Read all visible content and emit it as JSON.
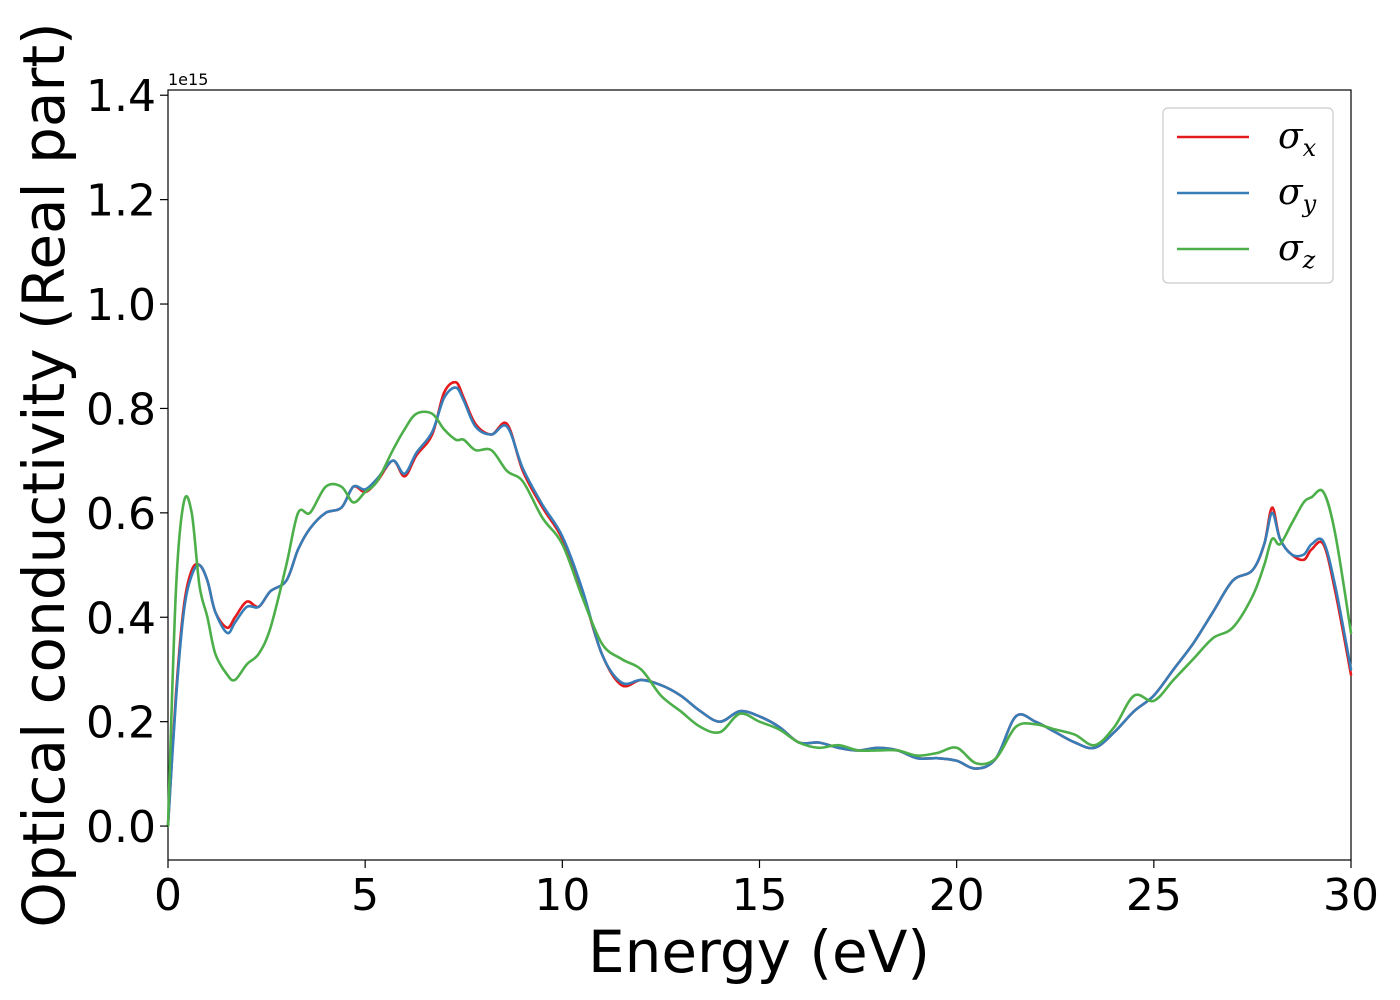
{
  "chart_data": {
    "type": "line",
    "xlabel": "Energy (eV)",
    "ylabel": "Optical conductivity (Real part)",
    "y_offset_label": "1e15",
    "xlim": [
      0,
      30
    ],
    "ylim": [
      -0.065,
      1.41
    ],
    "xticks": [
      0,
      5,
      10,
      15,
      20,
      25,
      30
    ],
    "xtick_labels": [
      "0",
      "5",
      "10",
      "15",
      "20",
      "25",
      "30"
    ],
    "yticks": [
      0.0,
      0.2,
      0.4,
      0.6,
      0.8,
      1.0,
      1.2,
      1.4
    ],
    "ytick_labels": [
      "0.0",
      "0.2",
      "0.4",
      "0.6",
      "0.8",
      "1.0",
      "1.2",
      "1.4"
    ],
    "grid": false,
    "legend_position": "top-right",
    "series": [
      {
        "name": "σ",
        "subscript": "x",
        "color": "#e41a1c",
        "x": [
          0,
          0.2,
          0.4,
          0.6,
          0.8,
          1.0,
          1.2,
          1.5,
          1.7,
          2.0,
          2.3,
          2.6,
          3.0,
          3.3,
          3.6,
          4.0,
          4.4,
          4.7,
          5.0,
          5.3,
          5.7,
          6.0,
          6.3,
          6.7,
          7.0,
          7.3,
          7.5,
          7.8,
          8.2,
          8.6,
          9.0,
          9.5,
          10.0,
          10.5,
          11.0,
          11.5,
          12.0,
          12.5,
          13.0,
          13.5,
          14.0,
          14.5,
          15.0,
          15.5,
          16.0,
          16.5,
          17.0,
          17.5,
          18.0,
          18.5,
          19.0,
          19.5,
          20.0,
          20.5,
          21.0,
          21.5,
          22.0,
          22.5,
          23.0,
          23.5,
          24.0,
          24.5,
          25.0,
          25.5,
          26.0,
          26.5,
          27.0,
          27.5,
          27.8,
          28.0,
          28.2,
          28.5,
          28.8,
          29.0,
          29.3,
          29.6,
          30.0
        ],
        "values": [
          0.0,
          0.25,
          0.42,
          0.49,
          0.5,
          0.47,
          0.41,
          0.38,
          0.4,
          0.43,
          0.42,
          0.45,
          0.47,
          0.53,
          0.57,
          0.6,
          0.61,
          0.65,
          0.64,
          0.66,
          0.7,
          0.67,
          0.71,
          0.75,
          0.83,
          0.85,
          0.82,
          0.77,
          0.75,
          0.77,
          0.68,
          0.61,
          0.55,
          0.45,
          0.33,
          0.27,
          0.28,
          0.27,
          0.25,
          0.22,
          0.2,
          0.22,
          0.21,
          0.19,
          0.16,
          0.16,
          0.15,
          0.145,
          0.15,
          0.145,
          0.13,
          0.13,
          0.125,
          0.11,
          0.13,
          0.21,
          0.2,
          0.18,
          0.16,
          0.15,
          0.18,
          0.22,
          0.25,
          0.3,
          0.35,
          0.41,
          0.47,
          0.49,
          0.54,
          0.61,
          0.55,
          0.52,
          0.51,
          0.53,
          0.54,
          0.45,
          0.29
        ]
      },
      {
        "name": "σ",
        "subscript": "y",
        "color": "#377eb8",
        "x": [
          0,
          0.2,
          0.4,
          0.6,
          0.8,
          1.0,
          1.2,
          1.5,
          1.7,
          2.0,
          2.3,
          2.6,
          3.0,
          3.3,
          3.6,
          4.0,
          4.4,
          4.7,
          5.0,
          5.3,
          5.7,
          6.0,
          6.3,
          6.7,
          7.0,
          7.3,
          7.5,
          7.8,
          8.2,
          8.6,
          9.0,
          9.5,
          10.0,
          10.5,
          11.0,
          11.5,
          12.0,
          12.5,
          13.0,
          13.5,
          14.0,
          14.5,
          15.0,
          15.5,
          16.0,
          16.5,
          17.0,
          17.5,
          18.0,
          18.5,
          19.0,
          19.5,
          20.0,
          20.5,
          21.0,
          21.5,
          22.0,
          22.5,
          23.0,
          23.5,
          24.0,
          24.5,
          25.0,
          25.5,
          26.0,
          26.5,
          27.0,
          27.5,
          27.8,
          28.0,
          28.2,
          28.5,
          28.8,
          29.0,
          29.3,
          29.6,
          30.0
        ],
        "values": [
          0.0,
          0.24,
          0.41,
          0.48,
          0.5,
          0.47,
          0.41,
          0.37,
          0.39,
          0.42,
          0.42,
          0.45,
          0.47,
          0.53,
          0.57,
          0.6,
          0.61,
          0.65,
          0.645,
          0.665,
          0.7,
          0.675,
          0.715,
          0.755,
          0.82,
          0.84,
          0.815,
          0.765,
          0.75,
          0.765,
          0.685,
          0.615,
          0.555,
          0.455,
          0.33,
          0.275,
          0.28,
          0.27,
          0.25,
          0.22,
          0.2,
          0.22,
          0.21,
          0.19,
          0.16,
          0.16,
          0.15,
          0.145,
          0.15,
          0.145,
          0.13,
          0.13,
          0.125,
          0.11,
          0.13,
          0.21,
          0.2,
          0.18,
          0.16,
          0.15,
          0.18,
          0.22,
          0.25,
          0.3,
          0.35,
          0.41,
          0.47,
          0.49,
          0.54,
          0.6,
          0.55,
          0.52,
          0.52,
          0.54,
          0.545,
          0.46,
          0.3
        ]
      },
      {
        "name": "σ",
        "subscript": "z",
        "color": "#4daf4a",
        "x": [
          0,
          0.2,
          0.4,
          0.6,
          0.8,
          1.0,
          1.2,
          1.5,
          1.7,
          2.0,
          2.3,
          2.6,
          3.0,
          3.3,
          3.6,
          4.0,
          4.4,
          4.7,
          5.0,
          5.3,
          5.7,
          6.0,
          6.3,
          6.7,
          7.0,
          7.3,
          7.5,
          7.8,
          8.2,
          8.6,
          9.0,
          9.5,
          10.0,
          10.5,
          11.0,
          11.5,
          12.0,
          12.5,
          13.0,
          13.5,
          14.0,
          14.5,
          15.0,
          15.5,
          16.0,
          16.5,
          17.0,
          17.5,
          18.0,
          18.5,
          19.0,
          19.5,
          20.0,
          20.5,
          21.0,
          21.5,
          22.0,
          22.5,
          23.0,
          23.5,
          24.0,
          24.5,
          25.0,
          25.5,
          26.0,
          26.5,
          27.0,
          27.5,
          27.8,
          28.0,
          28.2,
          28.5,
          28.8,
          29.0,
          29.3,
          29.6,
          30.0
        ],
        "values": [
          0.0,
          0.45,
          0.62,
          0.6,
          0.46,
          0.4,
          0.33,
          0.29,
          0.28,
          0.31,
          0.33,
          0.38,
          0.5,
          0.6,
          0.6,
          0.65,
          0.65,
          0.62,
          0.64,
          0.66,
          0.72,
          0.76,
          0.79,
          0.79,
          0.76,
          0.74,
          0.74,
          0.72,
          0.72,
          0.68,
          0.66,
          0.59,
          0.54,
          0.44,
          0.35,
          0.32,
          0.3,
          0.25,
          0.22,
          0.19,
          0.18,
          0.215,
          0.2,
          0.185,
          0.16,
          0.15,
          0.155,
          0.145,
          0.145,
          0.145,
          0.135,
          0.14,
          0.15,
          0.12,
          0.13,
          0.19,
          0.195,
          0.185,
          0.175,
          0.155,
          0.19,
          0.25,
          0.24,
          0.28,
          0.32,
          0.36,
          0.38,
          0.44,
          0.5,
          0.55,
          0.54,
          0.58,
          0.62,
          0.63,
          0.64,
          0.56,
          0.37
        ]
      }
    ]
  }
}
